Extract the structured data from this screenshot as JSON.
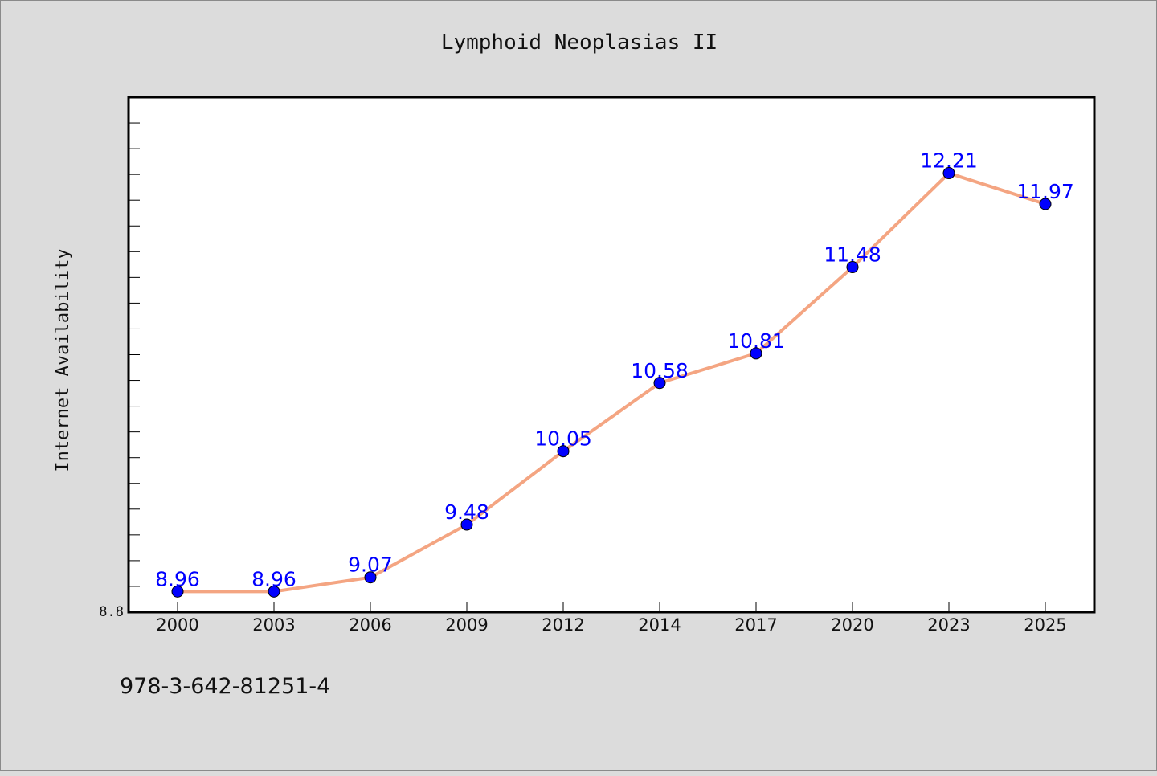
{
  "chart_data": {
    "type": "line",
    "title": "Lymphoid Neoplasias II",
    "xlabel": "",
    "ylabel": "Internet Availability",
    "categories": [
      "2000",
      "2003",
      "2006",
      "2009",
      "2012",
      "2014",
      "2017",
      "2020",
      "2023",
      "2025"
    ],
    "series": [
      {
        "values": [
          8.96,
          8.96,
          9.07,
          9.48,
          10.05,
          10.58,
          10.81,
          11.48,
          12.21,
          11.97
        ],
        "labels": [
          "8.96",
          "8.96",
          "9.07",
          "9.48",
          "10.05",
          "10.58",
          "10.81",
          "11.48",
          "12.21",
          "11.97"
        ],
        "line_color": "#f4a582",
        "marker_color": "#0000ff",
        "label_color": "#0000ff"
      }
    ],
    "y_ticks": [
      "8.8"
    ],
    "ylim": [
      8.8,
      12.8
    ],
    "grid": false,
    "legend": "none"
  },
  "footnote": "978-3-642-81251-4",
  "colors": {
    "background": "#dcdcdc",
    "plot_background": "#ffffff",
    "axis": "#000000"
  }
}
